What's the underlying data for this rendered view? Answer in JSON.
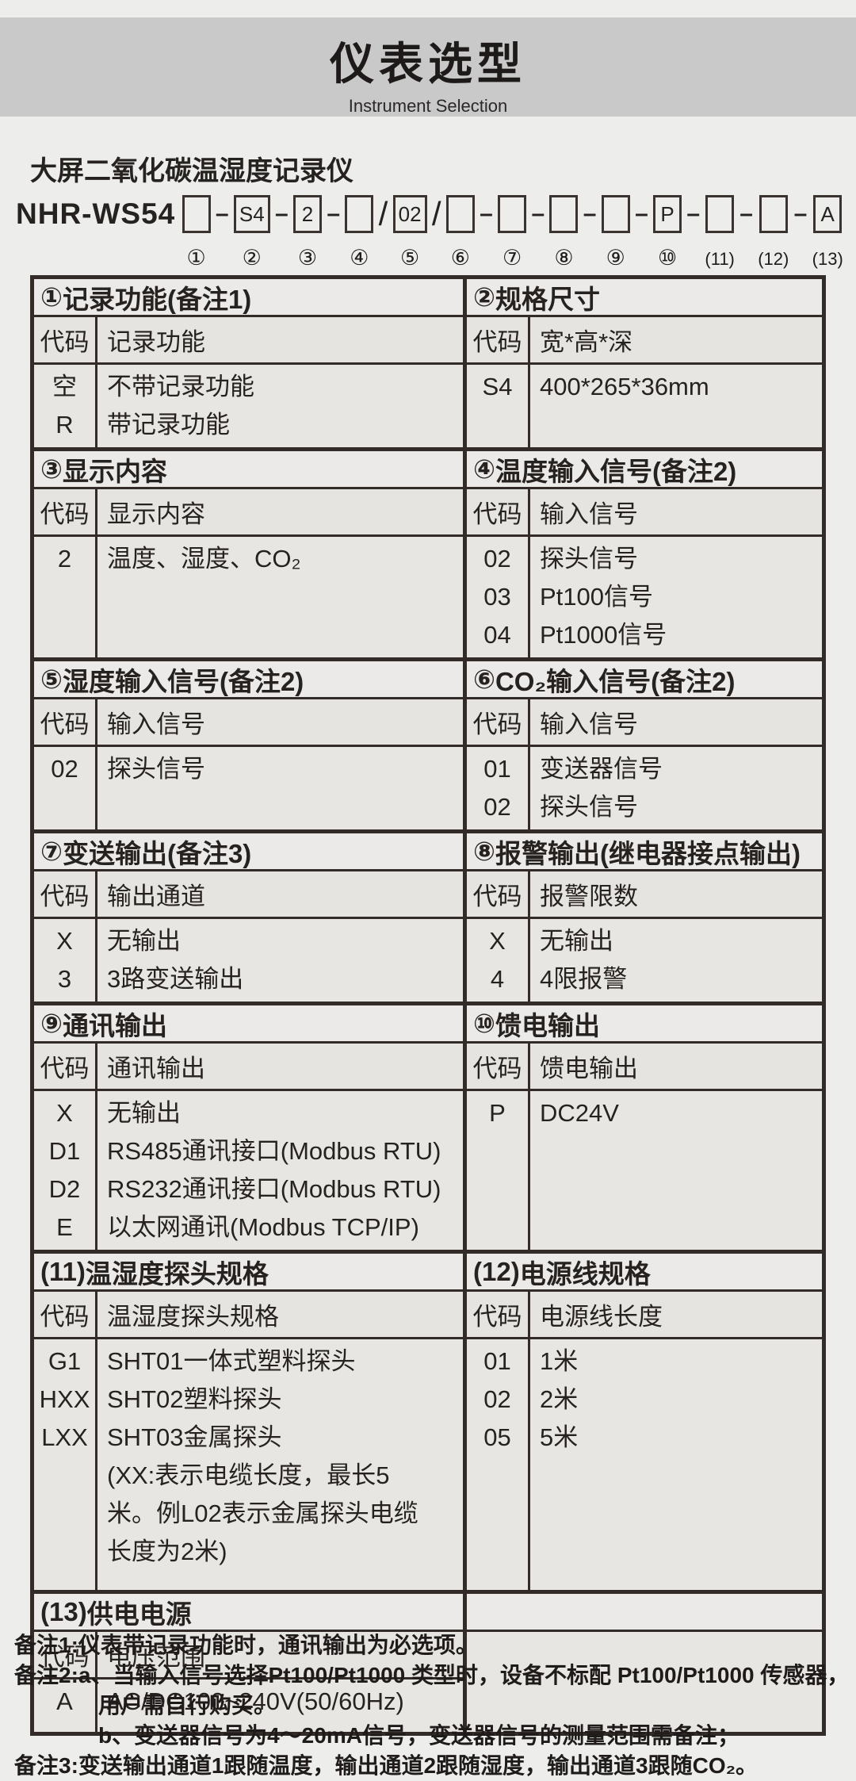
{
  "header": {
    "title": "仪表选型",
    "subtitle": "Instrument Selection"
  },
  "product": {
    "title": "大屏二氧化碳温湿度记录仪",
    "model_prefix": "NHR-WS54"
  },
  "model_code": {
    "segments": [
      {
        "num": "①",
        "value": "",
        "sep": "-"
      },
      {
        "num": "②",
        "value": "S4",
        "sep": "-"
      },
      {
        "num": "③",
        "value": "2",
        "sep": "-"
      },
      {
        "num": "④",
        "value": "",
        "sep": "/"
      },
      {
        "num": "⑤",
        "value": "02",
        "sep": "/"
      },
      {
        "num": "⑥",
        "value": "",
        "sep": "-"
      },
      {
        "num": "⑦",
        "value": "",
        "sep": "-"
      },
      {
        "num": "⑧",
        "value": "",
        "sep": "-"
      },
      {
        "num": "⑨",
        "value": "",
        "sep": "-"
      },
      {
        "num": "⑩",
        "value": "P",
        "sep": "-"
      },
      {
        "num": "(11)",
        "value": "",
        "sep": "-"
      },
      {
        "num": "(12)",
        "value": "",
        "sep": "-"
      },
      {
        "num": "(13)",
        "value": "A",
        "sep": ""
      }
    ]
  },
  "table": {
    "bands": [
      {
        "left": {
          "num": "①",
          "title": "记录功能(备注1)",
          "code_header": "代码",
          "desc_header": "记录功能",
          "codes": [
            "空",
            "R"
          ],
          "descs": [
            "不带记录功能",
            "带记录功能"
          ]
        },
        "right": {
          "num": "②",
          "title": "规格尺寸",
          "code_header": "代码",
          "desc_header": "宽*高*深",
          "codes": [
            "S4"
          ],
          "descs": [
            "400*265*36mm"
          ]
        }
      },
      {
        "left": {
          "num": "③",
          "title": "显示内容",
          "code_header": "代码",
          "desc_header": "显示内容",
          "codes": [
            "2"
          ],
          "descs": [
            "温度、湿度、CO₂"
          ]
        },
        "right": {
          "num": "④",
          "title": "温度输入信号(备注2)",
          "code_header": "代码",
          "desc_header": "输入信号",
          "codes": [
            "02",
            "03",
            "04"
          ],
          "descs": [
            "探头信号",
            "Pt100信号",
            "Pt1000信号"
          ]
        }
      },
      {
        "left": {
          "num": "⑤",
          "title": "湿度输入信号(备注2)",
          "code_header": "代码",
          "desc_header": "输入信号",
          "codes": [
            "02"
          ],
          "descs": [
            "探头信号"
          ]
        },
        "right": {
          "num": "⑥",
          "title": "CO₂输入信号(备注2)",
          "code_header": "代码",
          "desc_header": "输入信号",
          "codes": [
            "01",
            "02"
          ],
          "descs": [
            "变送器信号",
            "探头信号"
          ]
        }
      },
      {
        "left": {
          "num": "⑦",
          "title": "变送输出(备注3)",
          "code_header": "代码",
          "desc_header": "输出通道",
          "codes": [
            "X",
            "3"
          ],
          "descs": [
            "无输出",
            "3路变送输出"
          ]
        },
        "right": {
          "num": "⑧",
          "title": "报警输出(继电器接点输出)",
          "code_header": "代码",
          "desc_header": "报警限数",
          "codes": [
            "X",
            "4"
          ],
          "descs": [
            "无输出",
            "4限报警"
          ]
        }
      },
      {
        "left": {
          "num": "⑨",
          "title": "通讯输出",
          "code_header": "代码",
          "desc_header": "通讯输出",
          "codes": [
            "X",
            "D1",
            "D2",
            "E"
          ],
          "descs": [
            "无输出",
            "RS485通讯接口(Modbus RTU)",
            "RS232通讯接口(Modbus RTU)",
            "以太网通讯(Modbus TCP/IP)"
          ]
        },
        "right": {
          "num": "⑩",
          "title": "馈电输出",
          "code_header": "代码",
          "desc_header": "馈电输出",
          "codes": [
            "P"
          ],
          "descs": [
            "DC24V"
          ]
        }
      },
      {
        "left": {
          "num": "(11)",
          "title": "温湿度探头规格",
          "code_header": "代码",
          "desc_header": "温湿度探头规格",
          "codes": [
            "G1",
            "HXX",
            "LXX",
            "",
            "",
            ""
          ],
          "descs": [
            "SHT01一体式塑料探头",
            "SHT02塑料探头",
            "SHT03金属探头",
            "(XX:表示电缆长度，最长5",
            "米。例L02表示金属探头电缆",
            "长度为2米)"
          ]
        },
        "right": {
          "num": "(12)",
          "title": "电源线规格",
          "code_header": "代码",
          "desc_header": "电源线长度",
          "codes": [
            "01",
            "02",
            "05"
          ],
          "descs": [
            "1米",
            "2米",
            "5米"
          ]
        }
      },
      {
        "left": {
          "num": "(13)",
          "title": "供电电源",
          "code_header": "代码",
          "desc_header": "电压范围",
          "codes": [
            "A"
          ],
          "descs": [
            "AC/DC100~240V(50/60Hz)"
          ]
        },
        "right": null
      }
    ]
  },
  "notes": [
    {
      "text": "备注1:仪表带记录功能时，通讯输出为必选项。",
      "indent": false
    },
    {
      "text": "备注2:a、当输入信号选择Pt100/Pt1000 类型时，设备不标配 Pt100/Pt1000 传感器，",
      "indent": false
    },
    {
      "text": "用户需自行购买。",
      "indent": true
    },
    {
      "text": "b、变送器信号为4～20mA信号，变送器信号的测量范围需备注；",
      "indent": true
    },
    {
      "text": "备注3:变送输出通道1跟随温度，输出通道2跟随湿度，输出通道3跟随CO₂。",
      "indent": false
    }
  ],
  "colors": {
    "band_bg": "#c9c9c9",
    "page_bg": "#ededec",
    "cell_bg": "#e8e6e3",
    "border": "#322b27",
    "text": "#262220"
  }
}
